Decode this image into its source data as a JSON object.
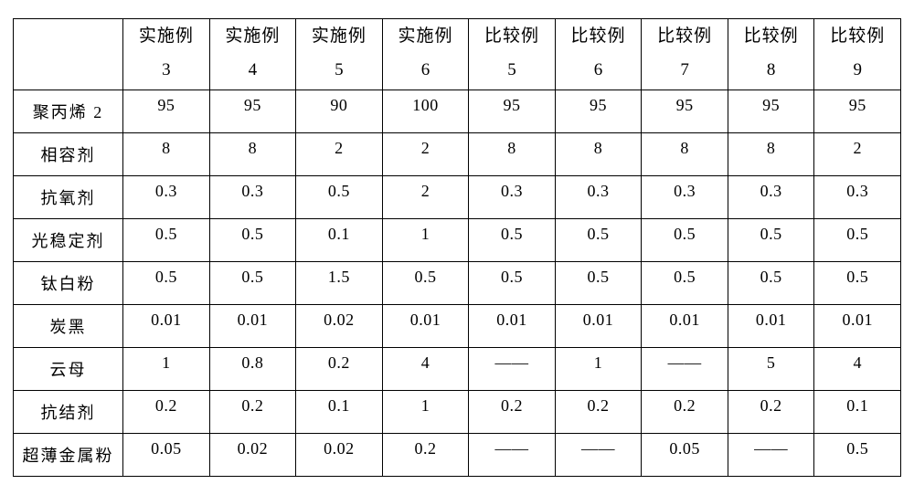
{
  "table": {
    "type": "table",
    "background_color": "#ffffff",
    "border_color": "#000000",
    "text_color": "#000000",
    "header_fontsize_pt": 14,
    "body_fontsize_pt": 13,
    "columns": [
      {
        "line1": "",
        "line2": ""
      },
      {
        "line1": "实施例",
        "line2": "3"
      },
      {
        "line1": "实施例",
        "line2": "4"
      },
      {
        "line1": "实施例",
        "line2": "5"
      },
      {
        "line1": "实施例",
        "line2": "6"
      },
      {
        "line1": "比较例",
        "line2": "5"
      },
      {
        "line1": "比较例",
        "line2": "6"
      },
      {
        "line1": "比较例",
        "line2": "7"
      },
      {
        "line1": "比较例",
        "line2": "8"
      },
      {
        "line1": "比较例",
        "line2": "9"
      }
    ],
    "rows": [
      {
        "label": "聚丙烯 2",
        "values": [
          "95",
          "95",
          "90",
          "100",
          "95",
          "95",
          "95",
          "95",
          "95"
        ]
      },
      {
        "label": "相容剂",
        "values": [
          "8",
          "8",
          "2",
          "2",
          "8",
          "8",
          "8",
          "8",
          "2"
        ]
      },
      {
        "label": "抗氧剂",
        "values": [
          "0.3",
          "0.3",
          "0.5",
          "2",
          "0.3",
          "0.3",
          "0.3",
          "0.3",
          "0.3"
        ]
      },
      {
        "label": "光稳定剂",
        "values": [
          "0.5",
          "0.5",
          "0.1",
          "1",
          "0.5",
          "0.5",
          "0.5",
          "0.5",
          "0.5"
        ]
      },
      {
        "label": "钛白粉",
        "values": [
          "0.5",
          "0.5",
          "1.5",
          "0.5",
          "0.5",
          "0.5",
          "0.5",
          "0.5",
          "0.5"
        ]
      },
      {
        "label": "炭黑",
        "values": [
          "0.01",
          "0.01",
          "0.02",
          "0.01",
          "0.01",
          "0.01",
          "0.01",
          "0.01",
          "0.01"
        ]
      },
      {
        "label": "云母",
        "values": [
          "1",
          "0.8",
          "0.2",
          "4",
          "——",
          "1",
          "——",
          "5",
          "4"
        ]
      },
      {
        "label": "抗结剂",
        "values": [
          "0.2",
          "0.2",
          "0.1",
          "1",
          "0.2",
          "0.2",
          "0.2",
          "0.2",
          "0.1"
        ]
      },
      {
        "label": "超薄金属粉",
        "values": [
          "0.05",
          "0.02",
          "0.02",
          "0.2",
          "——",
          "——",
          "0.05",
          "——",
          "0.5"
        ]
      }
    ]
  }
}
